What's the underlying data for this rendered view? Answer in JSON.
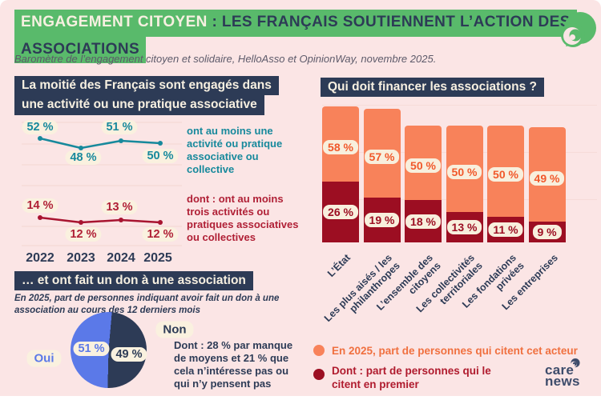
{
  "colors": {
    "background": "#fbe5e5",
    "navy": "#2d3b56",
    "green_highlight": "#59ba6b",
    "cream_pill": "#faf1df",
    "teal": "#17899c",
    "crimson": "#b02036",
    "salmon_bar": "#f8825a",
    "dark_red_bar": "#9c0e22",
    "orange_text": "#f1582a",
    "periwinkle_blue": "#5b79e8"
  },
  "header": {
    "title_highlight": "ENGAGEMENT CITOYEN",
    "title_rest": " : LES FRANÇAIS SOUTIENNENT L’ACTION DES",
    "title_line2": "ASSOCIATIONS",
    "subtitle": "Baromètre de l’engagement citoyen et solidaire, HelloAsso et OpinionWay, novembre 2025."
  },
  "engagement": {
    "heading_line1": "La moitié des Français sont engagés dans",
    "heading_line2": "une activité ou une pratique associative",
    "years": [
      "2022",
      "2023",
      "2024",
      "2025"
    ],
    "series1_values": [
      "52 %",
      "48 %",
      "51 %",
      "50 %"
    ],
    "series1_note": "ont au moins une activité ou pratique associative ou collective",
    "series2_values": [
      "14 %",
      "12 %",
      "13 %",
      "12 %"
    ],
    "series2_note": "dont : ont au moins trois activités ou pratiques associatives ou collectives"
  },
  "donation": {
    "heading": "… et ont fait un don à une association",
    "note": "En 2025, part de personnes indiquant avoir fait un don à une association au cours des 12 derniers mois",
    "yes_label": "Oui",
    "yes_value": "51 %",
    "no_label": "Non",
    "no_value": "49 %",
    "no_detail": "Dont : 28 % par manque de moyens et 21 % que cela n’intéresse pas ou qui n’y pensent pas"
  },
  "financing": {
    "heading": "Qui doit financer les associations ?",
    "bars": [
      {
        "category": "L’État",
        "cite": "58 %",
        "first": "26 %"
      },
      {
        "category": "Les plus aisés / les philanthropes",
        "cite": "57 %",
        "first": "19 %"
      },
      {
        "category": "L’ensemble des citoyens",
        "cite": "50 %",
        "first": "18 %"
      },
      {
        "category": "Les collectivités territoriales",
        "cite": "50 %",
        "first": "13 %"
      },
      {
        "category": "Les fondations privées",
        "cite": "50 %",
        "first": "11 %"
      },
      {
        "category": "Les entreprises",
        "cite": "49 %",
        "first": "9 %"
      }
    ],
    "legend1": "En 2025, part de personnes qui citent cet acteur",
    "legend2": "Dont : part de personnes qui le citent en premier"
  },
  "brand": {
    "word1": "care",
    "word2": "news"
  },
  "chart_data": [
    {
      "type": "line",
      "title": "La moitié des Français sont engagés dans une activité ou une pratique associative",
      "x": [
        2022,
        2023,
        2024,
        2025
      ],
      "unit": "%",
      "grid": true,
      "series": [
        {
          "name": "ont au moins une activité ou pratique associative ou collective",
          "values": [
            52,
            48,
            51,
            50
          ],
          "color": "#17899c"
        },
        {
          "name": "dont : ont au moins trois activités ou pratiques associatives ou collectives",
          "values": [
            14,
            12,
            13,
            12
          ],
          "color": "#a81430"
        }
      ]
    },
    {
      "type": "bar",
      "subtype": "stacked-overlap",
      "title": "Qui doit financer les associations ?",
      "categories": [
        "L’État",
        "Les plus aisés / les philanthropes",
        "L’ensemble des citoyens",
        "Les collectivités territoriales",
        "Les fondations privées",
        "Les entreprises"
      ],
      "unit": "%",
      "ylim": [
        0,
        60
      ],
      "series": [
        {
          "name": "En 2025, part de personnes qui citent cet acteur (hauteur totale de la barre)",
          "values": [
            58,
            57,
            50,
            50,
            50,
            49
          ],
          "color": "#f8825a"
        },
        {
          "name": "Dont : part de personnes qui le citent en premier (segment inférieur)",
          "values": [
            26,
            19,
            18,
            13,
            11,
            9
          ],
          "color": "#9c0e22"
        }
      ],
      "legend_position": "bottom"
    },
    {
      "type": "pie",
      "title": "En 2025, part de personnes indiquant avoir fait un don à une association au cours des 12 derniers mois",
      "labels": [
        "Oui",
        "Non"
      ],
      "values": [
        51,
        49
      ],
      "colors": [
        "#5b79e8",
        "#2d3b56"
      ]
    }
  ]
}
